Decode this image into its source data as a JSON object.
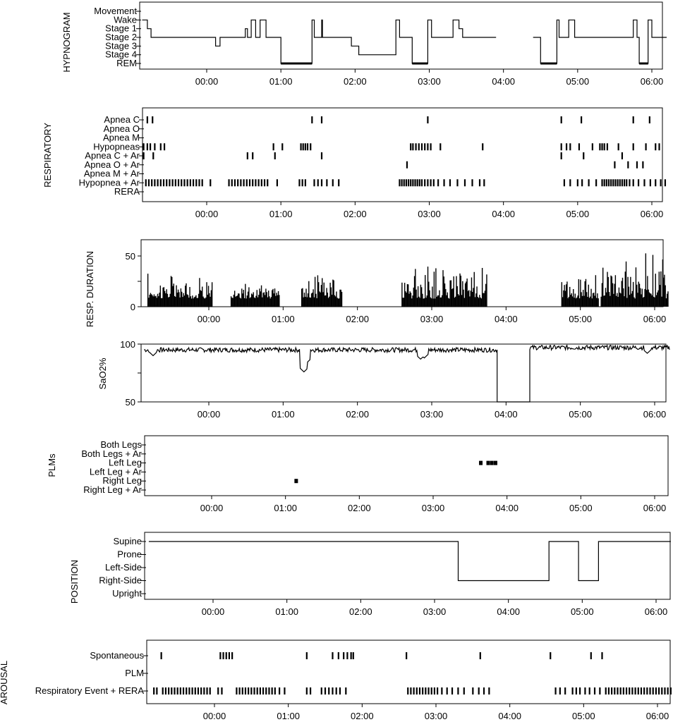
{
  "chart_data": [
    {
      "type": "line",
      "ylabel": "HYPNOGRAM",
      "y_categories": [
        "Movement",
        "Wake",
        "Stage 1",
        "Stage 2",
        "Stage 3",
        "Stage 4",
        "REM"
      ],
      "x_ticks": [
        "00:00",
        "01:00",
        "02:00",
        "03:00",
        "04:00",
        "05:00",
        "06:00"
      ],
      "x_range_hours": [
        -0.87,
        6.2
      ],
      "segments": [
        [
          [
            -0.87,
            1
          ],
          [
            -0.8,
            1
          ],
          [
            -0.8,
            2
          ],
          [
            -0.75,
            2
          ],
          [
            -0.75,
            3
          ],
          [
            0.12,
            3
          ],
          [
            0.12,
            4
          ],
          [
            0.18,
            4
          ],
          [
            0.18,
            3
          ],
          [
            0.52,
            3
          ],
          [
            0.52,
            2
          ],
          [
            0.55,
            2
          ],
          [
            0.55,
            3
          ],
          [
            0.6,
            3
          ],
          [
            0.6,
            1
          ],
          [
            0.66,
            1
          ],
          [
            0.66,
            3
          ],
          [
            0.72,
            3
          ],
          [
            0.72,
            1
          ],
          [
            0.8,
            1
          ],
          [
            0.8,
            3
          ],
          [
            1.0,
            3
          ],
          [
            1.0,
            6
          ],
          [
            1.42,
            6
          ],
          [
            1.42,
            1
          ],
          [
            1.45,
            1
          ],
          [
            1.45,
            3
          ],
          [
            1.55,
            3
          ],
          [
            1.55,
            1
          ],
          [
            1.56,
            1
          ],
          [
            1.56,
            3
          ],
          [
            1.95,
            3
          ],
          [
            1.95,
            4
          ],
          [
            2.05,
            4
          ],
          [
            2.05,
            5
          ],
          [
            2.55,
            5
          ],
          [
            2.55,
            1
          ],
          [
            2.6,
            1
          ],
          [
            2.6,
            3
          ],
          [
            2.77,
            3
          ],
          [
            2.77,
            6
          ],
          [
            2.98,
            6
          ],
          [
            2.98,
            1
          ],
          [
            3.03,
            1
          ],
          [
            3.03,
            3
          ],
          [
            3.32,
            3
          ],
          [
            3.32,
            1
          ],
          [
            3.4,
            1
          ],
          [
            3.4,
            2
          ],
          [
            3.45,
            2
          ],
          [
            3.45,
            3
          ],
          [
            3.9,
            3
          ]
        ],
        [
          [
            4.4,
            3
          ],
          [
            4.5,
            3
          ],
          [
            4.5,
            6
          ],
          [
            4.72,
            6
          ],
          [
            4.72,
            1
          ],
          [
            4.75,
            1
          ],
          [
            4.75,
            3
          ],
          [
            4.88,
            3
          ],
          [
            4.88,
            1
          ],
          [
            4.96,
            1
          ],
          [
            4.96,
            3
          ],
          [
            5.75,
            3
          ],
          [
            5.75,
            1
          ],
          [
            5.8,
            1
          ],
          [
            5.8,
            3
          ],
          [
            5.83,
            3
          ],
          [
            5.83,
            6
          ],
          [
            5.95,
            6
          ],
          [
            5.95,
            1
          ],
          [
            6.0,
            1
          ],
          [
            6.0,
            3
          ],
          [
            6.2,
            3
          ]
        ]
      ]
    },
    {
      "type": "scatter",
      "ylabel": "RESPIRATORY",
      "y_categories": [
        "Apnea C",
        "Apnea O",
        "Apnea M",
        "Hypopneas",
        "Apnea C + Ar",
        "Apnea O + Ar",
        "Apnea M + Ar",
        "Hypopnea + Ar",
        "RERA"
      ],
      "x_ticks": [
        "00:00",
        "01:00",
        "02:00",
        "03:00",
        "04:00",
        "05:00",
        "06:00"
      ],
      "x_range_hours": [
        -0.87,
        6.2
      ],
      "events": {
        "Apnea C": [
          -0.8,
          -0.73,
          1.42,
          1.55,
          2.98,
          4.78,
          5.05,
          5.75,
          5.97
        ],
        "Apnea M": [],
        "Hypopneas": [
          -0.85,
          -0.8,
          -0.76,
          -0.7,
          -0.62,
          -0.57,
          0.9,
          1.02,
          1.27,
          1.3,
          1.33,
          1.36,
          1.4,
          2.75,
          2.78,
          2.82,
          2.86,
          2.9,
          2.94,
          2.98,
          3.02,
          3.15,
          3.72,
          4.78,
          4.85,
          4.9,
          5.02,
          5.2,
          5.3,
          5.33,
          5.36,
          5.4,
          5.55,
          5.75,
          5.92,
          6.05,
          6.1
        ],
        "Apnea C + Ar": [
          -0.85,
          -0.72,
          0.55,
          0.62,
          0.92,
          1.55,
          4.78,
          5.08,
          5.6
        ],
        "Apnea O + Ar": [
          2.7,
          5.88,
          5.8,
          5.68,
          5.5
        ],
        "Hypopnea + Ar": [
          -0.82,
          -0.78,
          -0.74,
          -0.7,
          -0.66,
          -0.62,
          -0.58,
          -0.54,
          -0.5,
          -0.46,
          -0.42,
          -0.38,
          -0.34,
          -0.3,
          -0.26,
          -0.22,
          -0.18,
          -0.14,
          -0.1,
          -0.06,
          0.05,
          0.3,
          0.34,
          0.38,
          0.42,
          0.46,
          0.5,
          0.54,
          0.58,
          0.62,
          0.66,
          0.7,
          0.74,
          0.78,
          0.82,
          0.95,
          1.25,
          1.29,
          1.33,
          1.45,
          1.5,
          1.55,
          1.62,
          1.7,
          1.78,
          2.6,
          2.63,
          2.66,
          2.69,
          2.72,
          2.75,
          2.78,
          2.81,
          2.84,
          2.87,
          2.9,
          2.94,
          2.98,
          3.02,
          3.06,
          3.12,
          3.2,
          3.28,
          3.38,
          3.48,
          3.58,
          3.68,
          3.74,
          4.82,
          4.9,
          5.0,
          5.06,
          5.15,
          5.25,
          5.33,
          5.36,
          5.39,
          5.42,
          5.45,
          5.48,
          5.51,
          5.54,
          5.57,
          5.6,
          5.63,
          5.66,
          5.7,
          5.75,
          5.82,
          5.9,
          5.98,
          6.05,
          6.12,
          6.18
        ]
      }
    },
    {
      "type": "bar",
      "ylabel": "RESP. DURATION",
      "y_ticks": [
        0,
        50
      ],
      "ylim": [
        0,
        66
      ],
      "x_ticks": [
        "00:00",
        "01:00",
        "02:00",
        "03:00",
        "04:00",
        "05:00",
        "06:00"
      ],
      "x_range_hours": [
        -0.87,
        6.2
      ],
      "clusters": [
        {
          "from": -0.82,
          "to": 0.05,
          "min": 8,
          "max": 38
        },
        {
          "from": 0.3,
          "to": 0.95,
          "min": 8,
          "max": 30
        },
        {
          "from": 1.25,
          "to": 1.8,
          "min": 8,
          "max": 44
        },
        {
          "from": 2.6,
          "to": 3.75,
          "min": 8,
          "max": 48
        },
        {
          "from": 4.75,
          "to": 5.25,
          "min": 8,
          "max": 42
        },
        {
          "from": 5.28,
          "to": 6.18,
          "min": 8,
          "max": 64
        }
      ]
    },
    {
      "type": "line",
      "ylabel": "SaO2%",
      "y_ticks": [
        50,
        100
      ],
      "ylim": [
        50,
        100
      ],
      "x_ticks": [
        "00:00",
        "01:00",
        "02:00",
        "03:00",
        "04:00",
        "05:00",
        "06:00"
      ],
      "x_range_hours": [
        -0.87,
        6.2
      ],
      "segments": [
        {
          "from": -0.87,
          "to": 3.88,
          "baseline": 95,
          "dips": [
            {
              "at": -0.75,
              "to": 90
            },
            {
              "at": 1.28,
              "to": 76
            },
            {
              "at": 1.32,
              "to": 84
            },
            {
              "at": 2.85,
              "to": 87
            },
            {
              "at": 2.9,
              "to": 88
            }
          ]
        },
        {
          "from": 3.88,
          "to": 4.32,
          "baseline": 50
        },
        {
          "from": 4.32,
          "to": 6.2,
          "baseline": 97,
          "dips": [
            {
              "at": 5.9,
              "to": 92
            }
          ]
        }
      ]
    },
    {
      "type": "scatter",
      "ylabel": "PLMs",
      "y_categories": [
        "Both Legs",
        "Both Legs + Ar",
        "Left Leg",
        "Left Leg + Ar",
        "Right Leg",
        "Right Leg + Ar"
      ],
      "x_ticks": [
        "00:00",
        "01:00",
        "02:00",
        "03:00",
        "04:00",
        "05:00",
        "06:00"
      ],
      "x_range_hours": [
        -0.87,
        6.2
      ],
      "events": {
        "Left Leg": [
          3.65,
          3.75,
          3.8,
          3.85
        ],
        "Right Leg": [
          1.15
        ]
      }
    },
    {
      "type": "line",
      "ylabel": "POSITION",
      "y_categories": [
        "Supine",
        "Prone",
        "Left-Side",
        "Right-Side",
        "Upright"
      ],
      "x_ticks": [
        "00:00",
        "01:00",
        "02:00",
        "03:00",
        "04:00",
        "05:00",
        "06:00"
      ],
      "x_range_hours": [
        -0.87,
        6.2
      ],
      "values": [
        [
          -0.87,
          0
        ],
        [
          3.32,
          0
        ],
        [
          3.32,
          3
        ],
        [
          4.55,
          3
        ],
        [
          4.55,
          0
        ],
        [
          4.95,
          0
        ],
        [
          4.95,
          3
        ],
        [
          5.22,
          3
        ],
        [
          5.22,
          0
        ],
        [
          6.2,
          0
        ]
      ]
    },
    {
      "type": "scatter",
      "ylabel": "AROUSAL",
      "y_categories": [
        "Spontaneous",
        "PLM",
        "Respiratory Event + RERA"
      ],
      "x_ticks": [
        "00:00",
        "01:00",
        "02:00",
        "03:00",
        "04:00",
        "05:00",
        "06:00"
      ],
      "x_range_hours": [
        -0.87,
        6.2
      ],
      "events": {
        "Spontaneous": [
          -0.72,
          0.08,
          0.12,
          0.16,
          0.2,
          0.24,
          1.25,
          1.6,
          1.68,
          1.75,
          1.8,
          1.85,
          1.88,
          2.6,
          3.6,
          4.55,
          5.1,
          5.25
        ],
        "PLM": [],
        "Respiratory Event + RERA": [
          -0.82,
          -0.78,
          -0.7,
          -0.66,
          -0.62,
          -0.58,
          -0.54,
          -0.5,
          -0.46,
          -0.42,
          -0.38,
          -0.34,
          -0.3,
          -0.26,
          -0.22,
          -0.18,
          -0.14,
          -0.1,
          -0.06,
          0.05,
          0.1,
          0.3,
          0.34,
          0.38,
          0.42,
          0.46,
          0.5,
          0.54,
          0.58,
          0.62,
          0.66,
          0.7,
          0.74,
          0.78,
          0.82,
          0.88,
          0.95,
          1.25,
          1.3,
          1.45,
          1.5,
          1.55,
          1.6,
          1.65,
          1.7,
          1.78,
          2.62,
          2.66,
          2.7,
          2.74,
          2.78,
          2.82,
          2.86,
          2.9,
          2.94,
          2.98,
          3.02,
          3.08,
          3.15,
          3.22,
          3.3,
          3.38,
          3.5,
          3.58,
          3.65,
          3.72,
          4.62,
          4.68,
          4.75,
          4.85,
          4.9,
          4.95,
          5.02,
          5.08,
          5.15,
          5.22,
          5.3,
          5.34,
          5.38,
          5.42,
          5.46,
          5.5,
          5.54,
          5.58,
          5.62,
          5.66,
          5.7,
          5.74,
          5.78,
          5.82,
          5.86,
          5.9,
          5.94,
          5.98,
          6.02,
          6.06,
          6.1,
          6.14,
          6.18
        ]
      }
    }
  ]
}
